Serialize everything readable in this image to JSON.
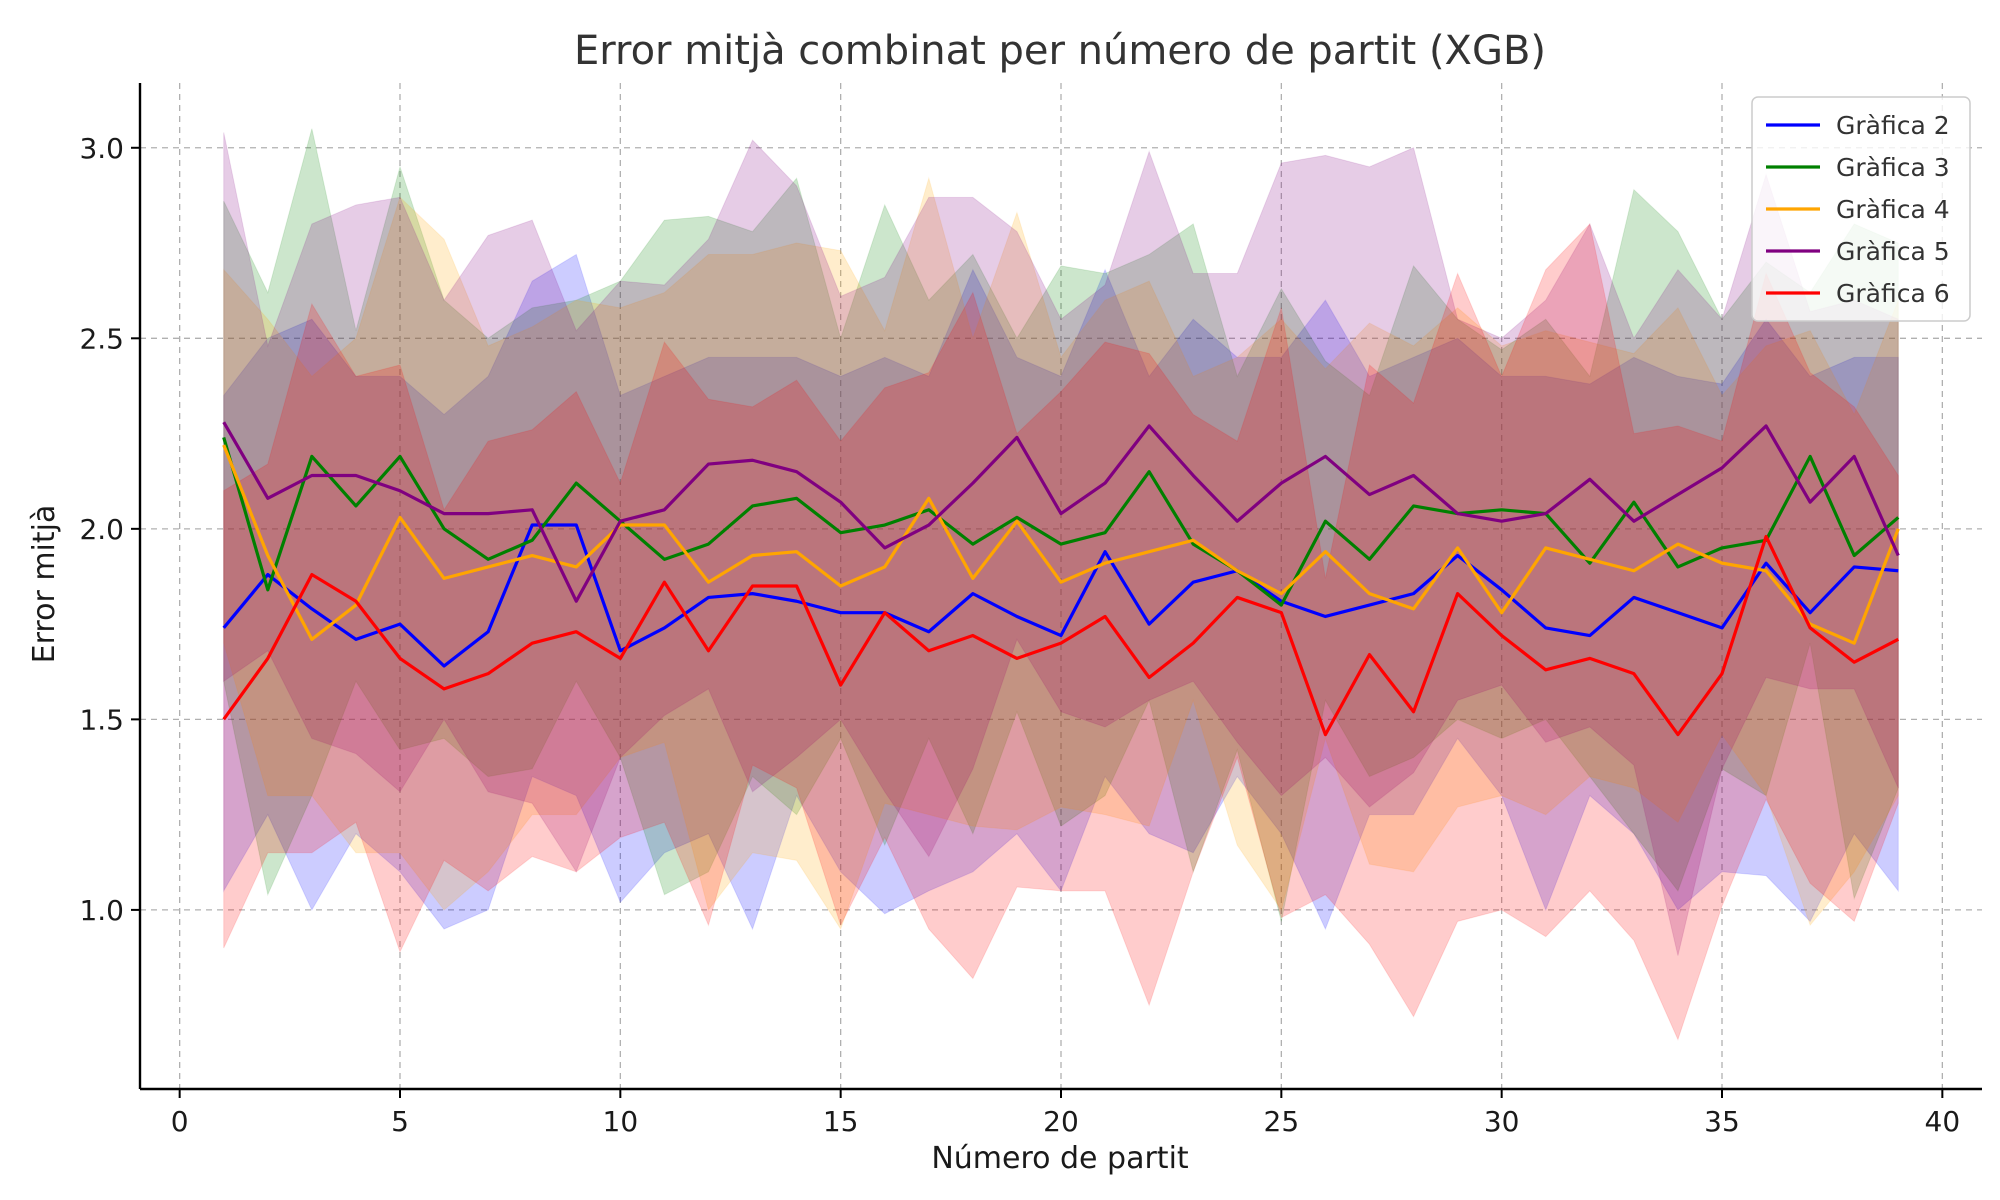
{
  "chart_data": {
    "type": "line",
    "title": "Error mitjà combinat per número de partit (XGB)",
    "xlabel": "Número de partit",
    "ylabel": "Error mitjà",
    "xlim": [
      -0.9,
      40.9
    ],
    "ylim": [
      0.53,
      3.17
    ],
    "xticks": [
      0,
      5,
      10,
      15,
      20,
      25,
      30,
      35,
      40
    ],
    "yticks": [
      1.0,
      1.5,
      2.0,
      2.5,
      3.0
    ],
    "xtick_labels": [
      "0",
      "5",
      "10",
      "15",
      "20",
      "25",
      "30",
      "35",
      "40"
    ],
    "ytick_labels": [
      "1.0",
      "1.5",
      "2.0",
      "2.5",
      "3.0"
    ],
    "grid": true,
    "legend_position": "top-right",
    "band_opacity": 0.2,
    "x": [
      1,
      2,
      3,
      4,
      5,
      6,
      7,
      8,
      9,
      10,
      11,
      12,
      13,
      14,
      15,
      16,
      17,
      18,
      19,
      20,
      21,
      22,
      23,
      24,
      25,
      26,
      27,
      28,
      29,
      30,
      31,
      32,
      33,
      34,
      35,
      36,
      37,
      38,
      39
    ],
    "series": [
      {
        "name": "Gràfica 2",
        "color": "#0000ff",
        "mean": [
          1.74,
          1.88,
          1.79,
          1.71,
          1.75,
          1.64,
          1.73,
          2.01,
          2.01,
          1.68,
          1.74,
          1.82,
          1.83,
          1.81,
          1.78,
          1.78,
          1.73,
          1.83,
          1.77,
          1.72,
          1.94,
          1.75,
          1.86,
          1.89,
          1.81,
          1.77,
          1.8,
          1.83,
          1.93,
          1.84,
          1.74,
          1.72,
          1.82,
          1.78,
          1.74,
          1.91,
          1.78,
          1.9,
          1.89
        ],
        "upper": [
          2.35,
          2.5,
          2.55,
          2.4,
          2.4,
          2.3,
          2.4,
          2.65,
          2.72,
          2.35,
          2.4,
          2.45,
          2.45,
          2.45,
          2.4,
          2.45,
          2.4,
          2.68,
          2.45,
          2.4,
          2.68,
          2.4,
          2.55,
          2.45,
          2.45,
          2.6,
          2.4,
          2.45,
          2.5,
          2.4,
          2.4,
          2.38,
          2.45,
          2.4,
          2.38,
          2.55,
          2.4,
          2.45,
          2.45
        ],
        "lower": [
          1.05,
          1.25,
          1.0,
          1.2,
          1.1,
          0.95,
          1.0,
          1.35,
          1.3,
          1.02,
          1.15,
          1.2,
          0.95,
          1.3,
          1.1,
          0.99,
          1.05,
          1.1,
          1.2,
          1.05,
          1.35,
          1.2,
          1.15,
          1.35,
          1.2,
          0.95,
          1.25,
          1.25,
          1.45,
          1.3,
          1.0,
          1.3,
          1.2,
          1.0,
          1.1,
          1.09,
          0.97,
          1.2,
          1.05
        ]
      },
      {
        "name": "Gràfica 3",
        "color": "#008000",
        "mean": [
          2.24,
          1.84,
          2.19,
          2.06,
          2.19,
          2.0,
          1.92,
          1.97,
          2.12,
          2.02,
          1.92,
          1.96,
          2.06,
          2.08,
          1.99,
          2.01,
          2.05,
          1.96,
          2.03,
          1.96,
          1.99,
          2.15,
          1.96,
          1.89,
          1.8,
          2.02,
          1.92,
          2.06,
          2.04,
          2.05,
          2.04,
          1.91,
          2.07,
          1.9,
          1.95,
          1.97,
          2.19,
          1.93,
          2.03
        ],
        "upper": [
          2.86,
          2.62,
          3.05,
          2.52,
          2.95,
          2.6,
          2.5,
          2.58,
          2.6,
          2.65,
          2.81,
          2.82,
          2.78,
          2.92,
          2.5,
          2.85,
          2.6,
          2.72,
          2.5,
          2.69,
          2.67,
          2.72,
          2.8,
          2.4,
          2.63,
          2.44,
          2.35,
          2.69,
          2.55,
          2.47,
          2.55,
          2.4,
          2.89,
          2.78,
          2.55,
          2.7,
          2.62,
          2.8,
          2.75
        ],
        "lower": [
          1.6,
          1.04,
          1.3,
          1.6,
          1.42,
          1.45,
          1.35,
          1.37,
          1.6,
          1.4,
          1.04,
          1.1,
          1.35,
          1.25,
          1.45,
          1.17,
          1.45,
          1.2,
          1.52,
          1.22,
          1.3,
          1.55,
          1.1,
          1.42,
          0.97,
          1.55,
          1.35,
          1.4,
          1.5,
          1.45,
          1.5,
          1.35,
          1.2,
          1.05,
          1.37,
          1.3,
          1.7,
          1.03,
          1.32
        ]
      },
      {
        "name": "Gràfica 4",
        "color": "#ffa500",
        "mean": [
          2.22,
          1.93,
          1.71,
          1.8,
          2.03,
          1.87,
          1.9,
          1.93,
          1.9,
          2.01,
          2.01,
          1.86,
          1.93,
          1.94,
          1.85,
          1.9,
          2.08,
          1.87,
          2.02,
          1.86,
          1.91,
          1.94,
          1.97,
          1.89,
          1.83,
          1.94,
          1.83,
          1.79,
          1.95,
          1.78,
          1.95,
          1.92,
          1.89,
          1.96,
          1.91,
          1.89,
          1.75,
          1.7,
          2.0
        ],
        "upper": [
          2.68,
          2.55,
          2.4,
          2.5,
          2.87,
          2.76,
          2.48,
          2.53,
          2.6,
          2.58,
          2.62,
          2.72,
          2.72,
          2.75,
          2.73,
          2.52,
          2.92,
          2.5,
          2.83,
          2.45,
          2.6,
          2.65,
          2.4,
          2.45,
          2.55,
          2.42,
          2.54,
          2.48,
          2.58,
          2.48,
          2.52,
          2.49,
          2.46,
          2.58,
          2.35,
          2.48,
          2.52,
          2.3,
          2.6
        ],
        "lower": [
          1.7,
          1.3,
          1.3,
          1.15,
          1.15,
          1.0,
          1.1,
          1.25,
          1.25,
          1.4,
          1.44,
          1.0,
          1.15,
          1.13,
          0.95,
          1.28,
          1.25,
          1.22,
          1.21,
          1.27,
          1.25,
          1.22,
          1.55,
          1.17,
          1.0,
          1.45,
          1.12,
          1.1,
          1.27,
          1.3,
          1.25,
          1.35,
          1.32,
          1.23,
          1.46,
          1.3,
          0.96,
          1.1,
          1.3
        ]
      },
      {
        "name": "Gràfica 5",
        "color": "#800080",
        "mean": [
          2.28,
          2.08,
          2.14,
          2.14,
          2.1,
          2.04,
          2.04,
          2.05,
          1.81,
          2.02,
          2.05,
          2.17,
          2.18,
          2.15,
          2.07,
          1.95,
          2.01,
          2.12,
          2.24,
          2.04,
          2.12,
          2.27,
          2.14,
          2.02,
          2.12,
          2.19,
          2.09,
          2.14,
          2.04,
          2.02,
          2.04,
          2.13,
          2.02,
          2.09,
          2.16,
          2.27,
          2.07,
          2.19,
          1.93
        ],
        "upper": [
          3.04,
          2.48,
          2.8,
          2.85,
          2.87,
          2.6,
          2.77,
          2.81,
          2.52,
          2.65,
          2.64,
          2.76,
          3.02,
          2.9,
          2.61,
          2.66,
          2.87,
          2.87,
          2.78,
          2.55,
          2.64,
          2.99,
          2.67,
          2.67,
          2.96,
          2.98,
          2.95,
          3.0,
          2.55,
          2.5,
          2.6,
          2.8,
          2.5,
          2.68,
          2.55,
          2.93,
          2.57,
          2.6,
          2.55
        ],
        "lower": [
          1.6,
          1.68,
          1.45,
          1.41,
          1.31,
          1.5,
          1.31,
          1.28,
          1.1,
          1.4,
          1.51,
          1.58,
          1.31,
          1.4,
          1.5,
          1.31,
          1.14,
          1.37,
          1.71,
          1.52,
          1.48,
          1.55,
          1.6,
          1.44,
          1.3,
          1.4,
          1.27,
          1.36,
          1.55,
          1.59,
          1.44,
          1.48,
          1.38,
          0.88,
          1.37,
          1.61,
          1.58,
          1.58,
          1.32
        ]
      },
      {
        "name": "Gràfica 6",
        "color": "#ff0000",
        "mean": [
          1.5,
          1.66,
          1.88,
          1.81,
          1.66,
          1.58,
          1.62,
          1.7,
          1.73,
          1.66,
          1.86,
          1.68,
          1.85,
          1.85,
          1.59,
          1.78,
          1.68,
          1.72,
          1.66,
          1.7,
          1.77,
          1.61,
          1.7,
          1.82,
          1.78,
          1.46,
          1.67,
          1.52,
          1.83,
          1.72,
          1.63,
          1.66,
          1.62,
          1.46,
          1.62,
          1.98,
          1.74,
          1.65,
          1.71
        ],
        "upper": [
          2.1,
          2.17,
          2.59,
          2.4,
          2.43,
          2.05,
          2.23,
          2.26,
          2.36,
          2.12,
          2.49,
          2.34,
          2.32,
          2.39,
          2.23,
          2.37,
          2.41,
          2.62,
          2.25,
          2.36,
          2.49,
          2.46,
          2.3,
          2.23,
          2.58,
          1.87,
          2.43,
          2.33,
          2.67,
          2.4,
          2.68,
          2.8,
          2.25,
          2.27,
          2.23,
          2.67,
          2.41,
          2.32,
          2.14
        ],
        "lower": [
          0.9,
          1.15,
          1.15,
          1.23,
          0.89,
          1.13,
          1.05,
          1.14,
          1.1,
          1.19,
          1.23,
          0.96,
          1.38,
          1.32,
          0.96,
          1.19,
          0.95,
          0.82,
          1.06,
          1.05,
          1.05,
          0.75,
          1.1,
          1.4,
          0.98,
          1.04,
          0.91,
          0.72,
          0.97,
          1.0,
          0.93,
          1.05,
          0.92,
          0.66,
          1.01,
          1.29,
          1.07,
          0.97,
          1.28
        ]
      }
    ]
  }
}
